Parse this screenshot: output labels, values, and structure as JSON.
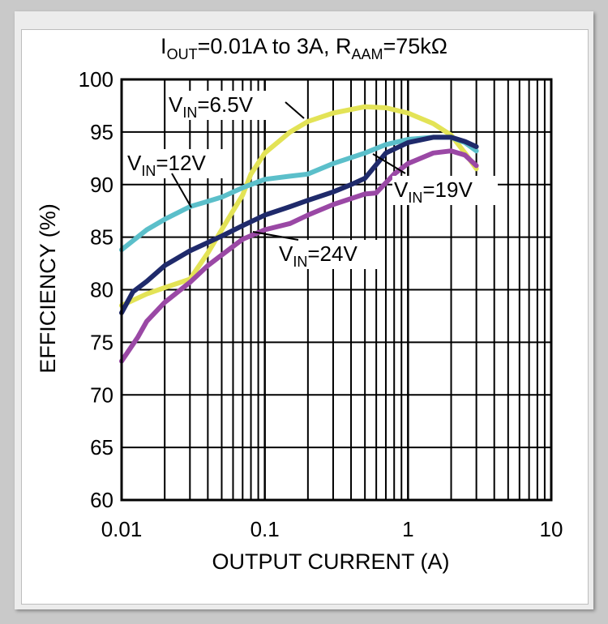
{
  "chart_data": {
    "type": "line",
    "title": {
      "i_main": "I",
      "i_sub": "OUT",
      "middle": "=0.01A to 3A, R",
      "r_sub": "AAM",
      "end": "=75kΩ"
    },
    "xlabel": "OUTPUT CURRENT (A)",
    "ylabel": "EFFICIENCY (%)",
    "x_scale": "log",
    "xlim": [
      0.01,
      10
    ],
    "ylim": [
      60,
      100
    ],
    "x_ticks": [
      0.01,
      0.1,
      1,
      10
    ],
    "x_tick_labels": [
      "0.01",
      "0.1",
      "1",
      "10"
    ],
    "y_ticks": [
      60,
      65,
      70,
      75,
      80,
      85,
      90,
      95,
      100
    ],
    "y_tick_labels": [
      "60",
      "65",
      "70",
      "75",
      "80",
      "85",
      "90",
      "95",
      "100"
    ],
    "grid": true,
    "series": [
      {
        "name": "VIN=6.5V",
        "label_main": "V",
        "label_sub": "IN",
        "label_rest": "=6.5V",
        "color": "#e3e356",
        "points": [
          [
            0.01,
            78.5
          ],
          [
            0.015,
            79.6
          ],
          [
            0.02,
            80.2
          ],
          [
            0.03,
            81.0
          ],
          [
            0.04,
            83.5
          ],
          [
            0.05,
            85.7
          ],
          [
            0.06,
            87.5
          ],
          [
            0.07,
            89.0
          ],
          [
            0.08,
            91.0
          ],
          [
            0.1,
            93.0
          ],
          [
            0.15,
            95.0
          ],
          [
            0.2,
            96.0
          ],
          [
            0.3,
            96.8
          ],
          [
            0.5,
            97.4
          ],
          [
            0.7,
            97.3
          ],
          [
            1.0,
            96.8
          ],
          [
            1.5,
            95.8
          ],
          [
            2.0,
            94.7
          ],
          [
            2.5,
            93.0
          ],
          [
            3.0,
            91.5
          ]
        ]
      },
      {
        "name": "VIN=12V",
        "label_main": "V",
        "label_sub": "IN",
        "label_rest": "=12V",
        "color": "#5bbfca",
        "points": [
          [
            0.01,
            83.8
          ],
          [
            0.015,
            85.7
          ],
          [
            0.02,
            86.7
          ],
          [
            0.03,
            87.9
          ],
          [
            0.05,
            88.8
          ],
          [
            0.07,
            89.7
          ],
          [
            0.1,
            90.5
          ],
          [
            0.15,
            90.8
          ],
          [
            0.2,
            91.0
          ],
          [
            0.3,
            92.0
          ],
          [
            0.5,
            93.0
          ],
          [
            0.7,
            93.8
          ],
          [
            1.0,
            94.3
          ],
          [
            1.5,
            94.5
          ],
          [
            2.0,
            94.5
          ],
          [
            2.5,
            94.0
          ],
          [
            3.0,
            93.2
          ]
        ]
      },
      {
        "name": "VIN=19V",
        "label_main": "V",
        "label_sub": "IN",
        "label_rest": "=19V",
        "color": "#1f2a6b",
        "points": [
          [
            0.01,
            77.8
          ],
          [
            0.012,
            79.8
          ],
          [
            0.015,
            80.8
          ],
          [
            0.02,
            82.3
          ],
          [
            0.03,
            83.7
          ],
          [
            0.05,
            85.1
          ],
          [
            0.07,
            86.1
          ],
          [
            0.1,
            87.1
          ],
          [
            0.15,
            87.9
          ],
          [
            0.2,
            88.5
          ],
          [
            0.3,
            89.3
          ],
          [
            0.4,
            90.0
          ],
          [
            0.5,
            90.6
          ],
          [
            0.7,
            93.0
          ],
          [
            1.0,
            94.0
          ],
          [
            1.5,
            94.5
          ],
          [
            2.0,
            94.5
          ],
          [
            2.5,
            94.1
          ],
          [
            3.0,
            93.6
          ]
        ]
      },
      {
        "name": "VIN=24V",
        "label_main": "V",
        "label_sub": "IN",
        "label_rest": "=24V",
        "color": "#9a48a5",
        "points": [
          [
            0.01,
            73.2
          ],
          [
            0.013,
            75.5
          ],
          [
            0.015,
            77.0
          ],
          [
            0.02,
            78.8
          ],
          [
            0.03,
            80.7
          ],
          [
            0.04,
            82.3
          ],
          [
            0.05,
            83.3
          ],
          [
            0.07,
            84.8
          ],
          [
            0.1,
            85.7
          ],
          [
            0.15,
            86.3
          ],
          [
            0.2,
            87.1
          ],
          [
            0.3,
            88.1
          ],
          [
            0.5,
            89.1
          ],
          [
            0.6,
            89.2
          ],
          [
            0.8,
            91.0
          ],
          [
            1.0,
            92.0
          ],
          [
            1.5,
            93.0
          ],
          [
            2.0,
            93.2
          ],
          [
            2.5,
            92.8
          ],
          [
            3.0,
            91.8
          ]
        ]
      }
    ]
  }
}
